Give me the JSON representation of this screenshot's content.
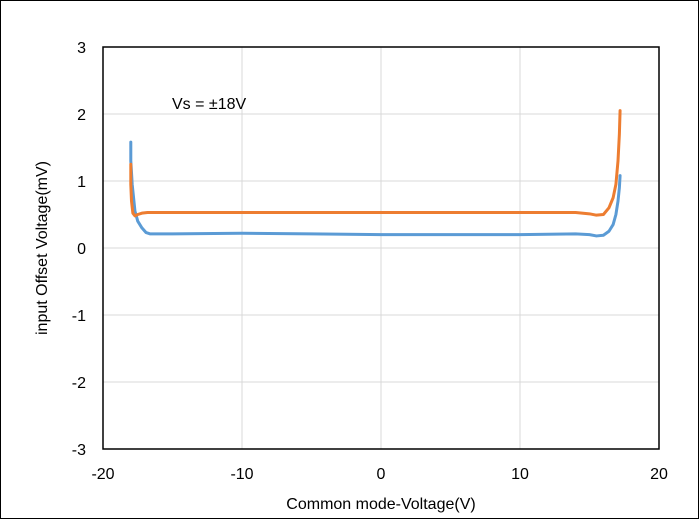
{
  "chart_data": {
    "type": "line",
    "title": "",
    "xlabel": "Common mode-Voltage(V)",
    "ylabel": "input Offset Voltage(mV)",
    "xlim": [
      -20,
      20
    ],
    "ylim": [
      -3,
      3
    ],
    "xticks": [
      -20,
      -10,
      0,
      10,
      20
    ],
    "yticks": [
      -3,
      -2,
      -1,
      0,
      1,
      2,
      3
    ],
    "grid": true,
    "annotation": "Vs = ±18V",
    "series": [
      {
        "color": "#5b9bd5",
        "x": [
          -18.0,
          -18.0,
          -17.9,
          -17.7,
          -17.5,
          -17.2,
          -16.9,
          -16.6,
          -15,
          -10,
          -5,
          0,
          5,
          10,
          14,
          15,
          15.5,
          16,
          16.4,
          16.7,
          16.9,
          17.05,
          17.15,
          17.2
        ],
        "y": [
          1.58,
          1.3,
          0.95,
          0.55,
          0.4,
          0.3,
          0.23,
          0.21,
          0.21,
          0.22,
          0.21,
          0.2,
          0.2,
          0.2,
          0.21,
          0.2,
          0.18,
          0.19,
          0.25,
          0.35,
          0.5,
          0.7,
          0.9,
          1.08
        ]
      },
      {
        "color": "#ed7d31",
        "x": [
          -18.0,
          -18.0,
          -17.95,
          -17.85,
          -17.7,
          -17.5,
          -17.2,
          -16.8,
          -15,
          -10,
          -5,
          0,
          5,
          10,
          14,
          15,
          15.5,
          16,
          16.4,
          16.7,
          16.9,
          17.05,
          17.15,
          17.2
        ],
        "y": [
          1.25,
          0.95,
          0.7,
          0.52,
          0.48,
          0.5,
          0.52,
          0.53,
          0.53,
          0.53,
          0.53,
          0.53,
          0.53,
          0.53,
          0.53,
          0.51,
          0.49,
          0.5,
          0.6,
          0.75,
          0.95,
          1.3,
          1.7,
          2.05
        ]
      }
    ]
  }
}
